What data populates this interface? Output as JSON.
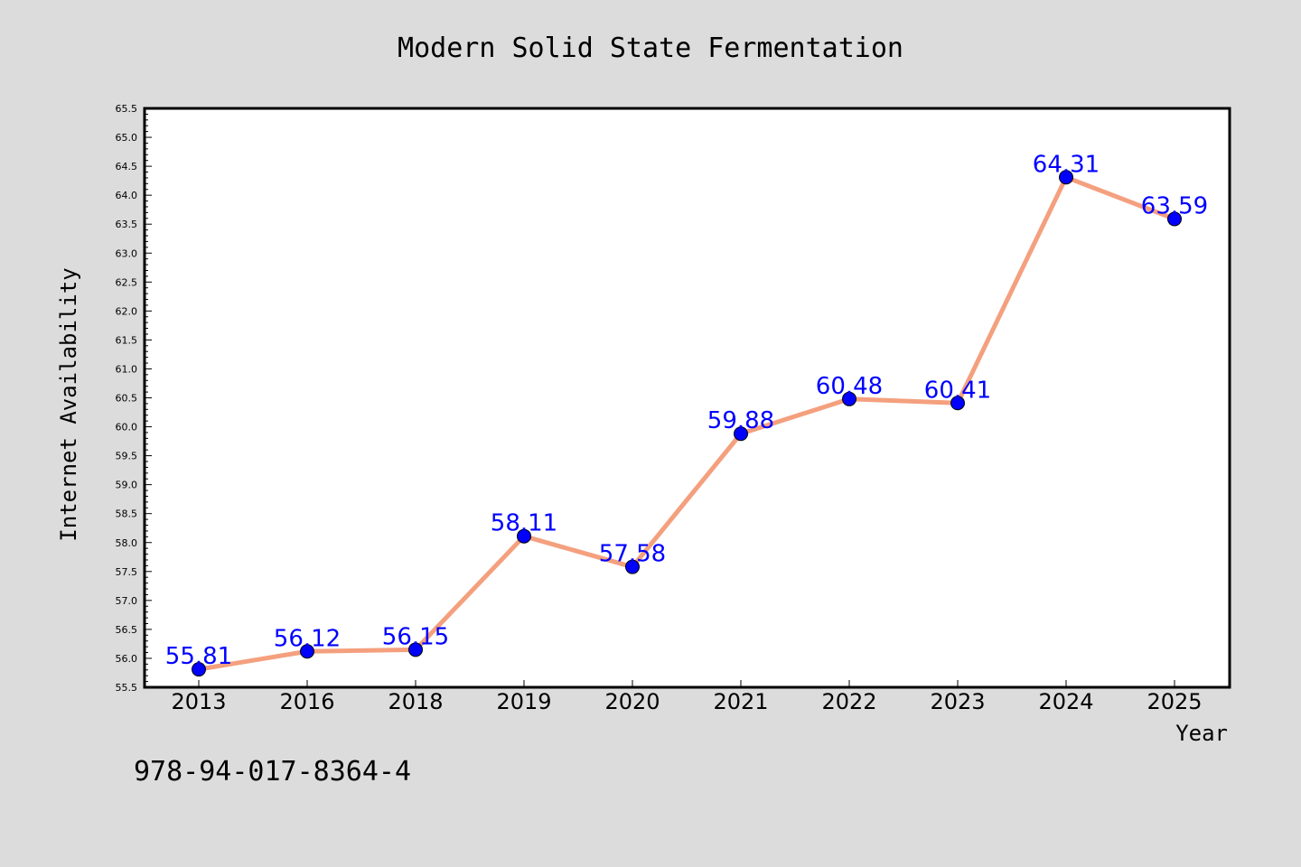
{
  "chart_data": {
    "type": "line",
    "title": "Modern Solid State Fermentation",
    "xlabel": "Year",
    "ylabel": "Internet Availability",
    "categories": [
      "2013",
      "2016",
      "2018",
      "2019",
      "2020",
      "2021",
      "2022",
      "2023",
      "2024",
      "2025"
    ],
    "series": [
      {
        "values": [
          55.81,
          56.12,
          56.15,
          58.11,
          57.58,
          59.88,
          60.48,
          60.41,
          64.31,
          63.59
        ]
      }
    ],
    "data_labels": [
      "55.81",
      "56.12",
      "56.15",
      "58.11",
      "57.58",
      "59.88",
      "60.48",
      "60.41",
      "64.31",
      "63.59"
    ],
    "ylim": [
      55.5,
      65.5
    ],
    "yticks": [
      "55.5",
      "56.0",
      "56.5",
      "57.0",
      "57.5",
      "58.0",
      "58.5",
      "59.0",
      "59.5",
      "60.0",
      "60.5",
      "61.0",
      "61.5",
      "62.0",
      "62.5",
      "63.0",
      "63.5",
      "64.0",
      "64.5",
      "65.0",
      "65.5"
    ],
    "grid": false,
    "line_color": "#f4a07e",
    "marker_color": "#0000ff",
    "label_color": "#0000ff"
  },
  "footer": {
    "isbn": "978-94-017-8364-4"
  },
  "colors": {
    "background": "#dcdcdc",
    "plot_background": "#ffffff"
  }
}
